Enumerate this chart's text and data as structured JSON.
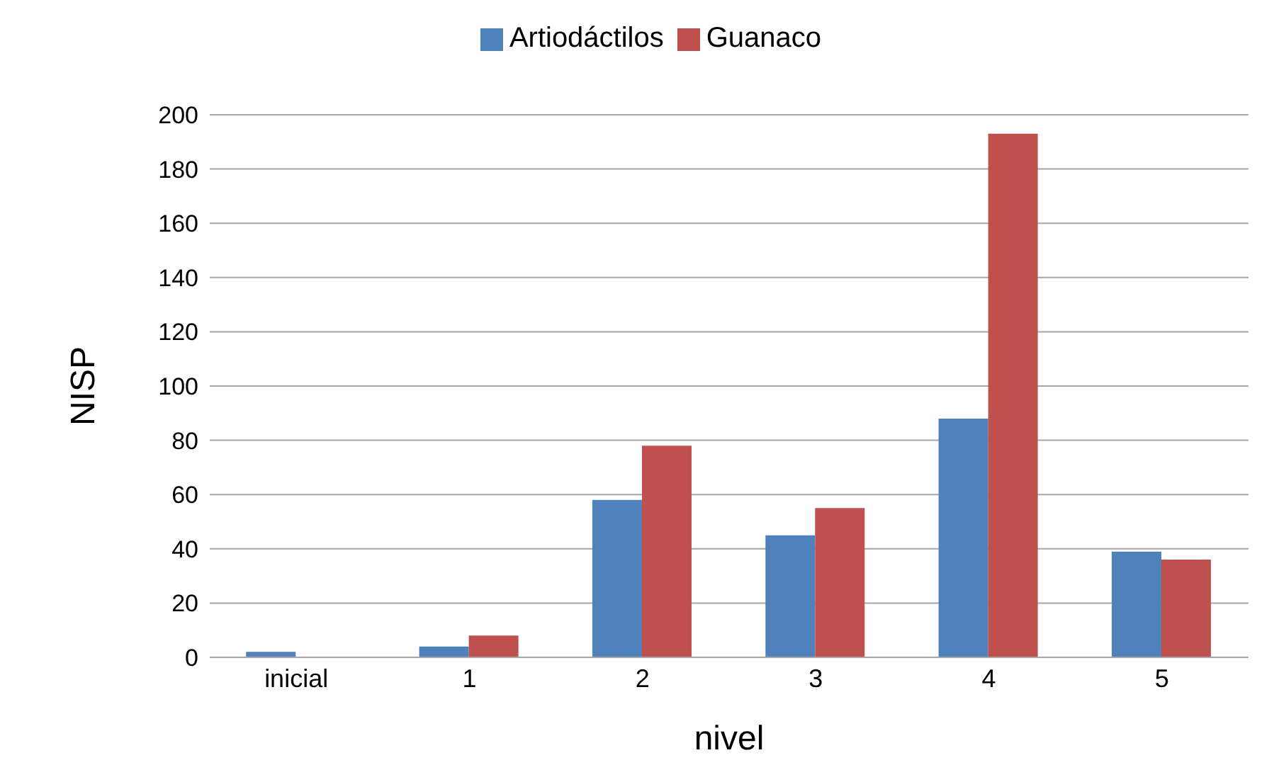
{
  "chart_data": {
    "type": "bar",
    "xlabel": "nivel",
    "ylabel": "NISP",
    "categories": [
      "inicial",
      "1",
      "2",
      "3",
      "4",
      "5"
    ],
    "series": [
      {
        "name": "Artiodáctilos",
        "color": "#4f81bd",
        "values": [
          2,
          4,
          58,
          45,
          88,
          39
        ]
      },
      {
        "name": "Guanaco",
        "color": "#c0504d",
        "values": [
          0,
          8,
          78,
          55,
          193,
          36
        ]
      }
    ],
    "ylim": [
      0,
      200
    ],
    "yticks": [
      0,
      20,
      40,
      60,
      80,
      100,
      120,
      140,
      160,
      180,
      200
    ],
    "grid": "y",
    "legend": "top"
  }
}
